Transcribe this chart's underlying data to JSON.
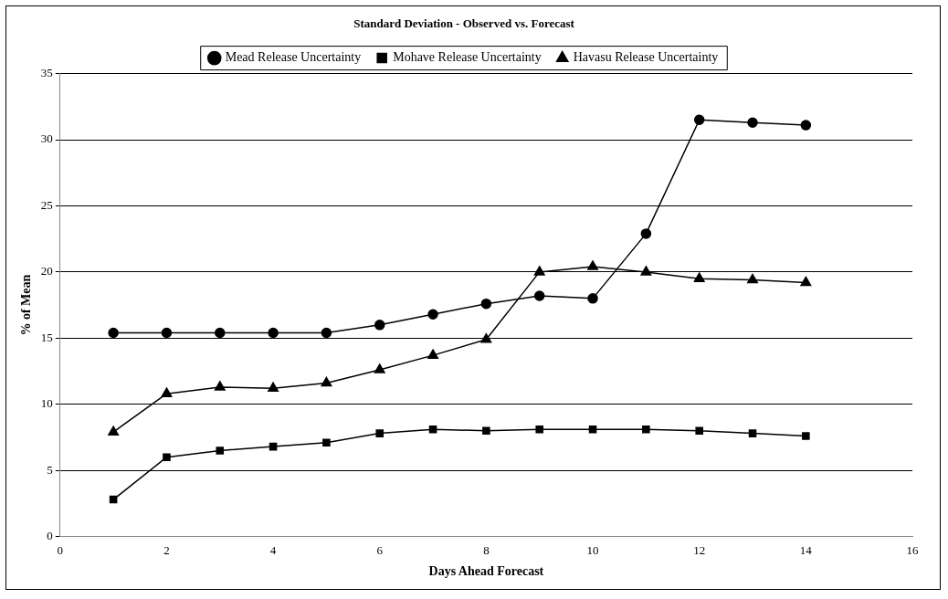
{
  "chart_data": {
    "type": "line",
    "title": "Standard Deviation - Observed vs. Forecast",
    "xlabel": "Days Ahead Forecast",
    "ylabel": "% of Mean",
    "x": [
      1,
      2,
      3,
      4,
      5,
      6,
      7,
      8,
      9,
      10,
      11,
      12,
      13,
      14
    ],
    "series": [
      {
        "name": "Mead Release Uncertainty",
        "color": "#000000",
        "marker": "circle",
        "values": [
          15.4,
          15.4,
          15.4,
          15.4,
          15.4,
          16.0,
          16.8,
          17.6,
          18.2,
          18.0,
          22.9,
          31.5,
          31.3,
          31.1
        ]
      },
      {
        "name": "Mohave Release Uncertainty",
        "color": "#000000",
        "marker": "square",
        "values": [
          2.8,
          6.0,
          6.5,
          6.8,
          7.1,
          7.8,
          8.1,
          8.0,
          8.1,
          8.1,
          8.1,
          8.0,
          7.8,
          7.6
        ]
      },
      {
        "name": "Havasu Release Uncertainty",
        "color": "#000000",
        "marker": "triangle",
        "values": [
          7.9,
          10.8,
          11.3,
          11.2,
          11.6,
          12.6,
          13.7,
          14.9,
          20.0,
          20.4,
          20.0,
          19.5,
          19.4,
          19.2
        ]
      }
    ],
    "xlim": [
      0,
      16
    ],
    "xticks": [
      0,
      2,
      4,
      6,
      8,
      10,
      12,
      14,
      16
    ],
    "ylim": [
      0,
      35
    ],
    "yticks": [
      0,
      5,
      10,
      15,
      20,
      25,
      30,
      35
    ],
    "grid": "y",
    "legend": "top",
    "line_style": "solid"
  }
}
